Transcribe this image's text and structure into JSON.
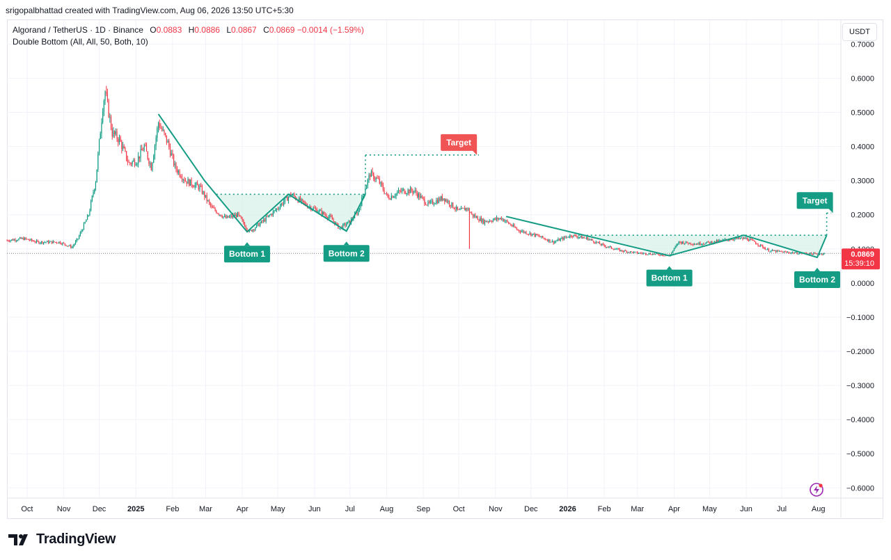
{
  "credit": "srigopalbhattad created with TradingView.com, Aug 06, 2026 13:50 UTC+5:30",
  "legend": {
    "symbol": "Algorand / TetherUS · 1D · Binance",
    "open_label": "O",
    "open": "0.0883",
    "high_label": "H",
    "high": "0.0886",
    "low_label": "L",
    "low": "0.0867",
    "close_label": "C",
    "close": "0.0869",
    "change": "−0.0014 (−1.59%)",
    "indicator": "Double Bottom (All, All, 50, Both, 10)"
  },
  "currency_button": "USDT",
  "price_badge": {
    "price": "0.0869",
    "countdown": "15:39:10"
  },
  "brand": "TradingView",
  "icons": {
    "logo": "tradingview-logo-icon",
    "flash": "lightning-icon"
  },
  "colors": {
    "up": "#089981",
    "down": "#f23645",
    "pattern": "#149c84",
    "fill": "#d9f2ea",
    "target_red": "#f05454"
  },
  "chart_data": {
    "type": "candlestick",
    "y_unit": "USDT",
    "ylim": [
      -0.63,
      0.77
    ],
    "y_ticks": [
      "0.7000",
      "0.6000",
      "0.5000",
      "0.4000",
      "0.3000",
      "0.2000",
      "0.1000",
      "0.0000",
      "−0.1000",
      "−0.2000",
      "−0.3000",
      "−0.4000",
      "−0.5000",
      "−0.6000"
    ],
    "x_ticks": [
      {
        "label": "Oct",
        "date": "2024-10-01"
      },
      {
        "label": "Nov",
        "date": "2024-11-01"
      },
      {
        "label": "Dec",
        "date": "2024-12-01"
      },
      {
        "label": "2025",
        "date": "2025-01-01"
      },
      {
        "label": "Feb",
        "date": "2025-02-01"
      },
      {
        "label": "Mar",
        "date": "2025-03-01"
      },
      {
        "label": "Apr",
        "date": "2025-04-01"
      },
      {
        "label": "May",
        "date": "2025-05-01"
      },
      {
        "label": "Jun",
        "date": "2025-06-01"
      },
      {
        "label": "Jul",
        "date": "2025-07-01"
      },
      {
        "label": "Aug",
        "date": "2025-08-01"
      },
      {
        "label": "Sep",
        "date": "2025-09-01"
      },
      {
        "label": "Oct",
        "date": "2025-10-01"
      },
      {
        "label": "Nov",
        "date": "2025-11-01"
      },
      {
        "label": "Dec",
        "date": "2025-12-01"
      },
      {
        "label": "2026",
        "date": "2026-01-01"
      },
      {
        "label": "Feb",
        "date": "2026-02-01"
      },
      {
        "label": "Mar",
        "date": "2026-03-01"
      },
      {
        "label": "Apr",
        "date": "2026-04-01"
      },
      {
        "label": "May",
        "date": "2026-05-01"
      },
      {
        "label": "Jun",
        "date": "2026-06-01"
      },
      {
        "label": "Jul",
        "date": "2026-07-01"
      },
      {
        "label": "Aug",
        "date": "2026-08-01"
      }
    ],
    "x_range": [
      "2024-09-14",
      "2026-08-20"
    ],
    "price_path": [
      [
        "2024-09-14",
        0.125
      ],
      [
        "2024-09-28",
        0.13
      ],
      [
        "2024-10-10",
        0.12
      ],
      [
        "2024-10-28",
        0.12
      ],
      [
        "2024-11-08",
        0.105
      ],
      [
        "2024-11-13",
        0.13
      ],
      [
        "2024-11-22",
        0.2
      ],
      [
        "2024-11-28",
        0.3
      ],
      [
        "2024-12-04",
        0.52
      ],
      [
        "2024-12-06",
        0.56
      ],
      [
        "2024-12-12",
        0.44
      ],
      [
        "2024-12-18",
        0.42
      ],
      [
        "2024-12-26",
        0.35
      ],
      [
        "2025-01-02",
        0.36
      ],
      [
        "2025-01-08",
        0.4
      ],
      [
        "2025-01-14",
        0.34
      ],
      [
        "2025-01-20",
        0.47
      ],
      [
        "2025-01-28",
        0.41
      ],
      [
        "2025-02-03",
        0.34
      ],
      [
        "2025-02-12",
        0.3
      ],
      [
        "2025-02-24",
        0.28
      ],
      [
        "2025-03-06",
        0.22
      ],
      [
        "2025-03-18",
        0.19
      ],
      [
        "2025-03-28",
        0.2
      ],
      [
        "2025-04-07",
        0.15
      ],
      [
        "2025-04-18",
        0.18
      ],
      [
        "2025-04-28",
        0.21
      ],
      [
        "2025-05-12",
        0.26
      ],
      [
        "2025-05-24",
        0.23
      ],
      [
        "2025-06-05",
        0.21
      ],
      [
        "2025-06-15",
        0.19
      ],
      [
        "2025-06-22",
        0.16
      ],
      [
        "2025-07-01",
        0.18
      ],
      [
        "2025-07-08",
        0.21
      ],
      [
        "2025-07-14",
        0.28
      ],
      [
        "2025-07-18",
        0.32
      ],
      [
        "2025-07-25",
        0.3
      ],
      [
        "2025-08-02",
        0.25
      ],
      [
        "2025-08-14",
        0.27
      ],
      [
        "2025-08-24",
        0.27
      ],
      [
        "2025-09-05",
        0.23
      ],
      [
        "2025-09-18",
        0.25
      ],
      [
        "2025-10-01",
        0.21
      ],
      [
        "2025-10-08",
        0.22
      ],
      [
        "2025-10-12",
        0.2
      ],
      [
        "2025-10-22",
        0.18
      ],
      [
        "2025-11-06",
        0.19
      ],
      [
        "2025-11-20",
        0.155
      ],
      [
        "2025-12-05",
        0.14
      ],
      [
        "2025-12-20",
        0.12
      ],
      [
        "2026-01-04",
        0.14
      ],
      [
        "2026-01-18",
        0.13
      ],
      [
        "2026-01-31",
        0.11
      ],
      [
        "2026-02-15",
        0.095
      ],
      [
        "2026-03-01",
        0.088
      ],
      [
        "2026-03-15",
        0.085
      ],
      [
        "2026-03-28",
        0.08
      ],
      [
        "2026-04-05",
        0.12
      ],
      [
        "2026-04-20",
        0.115
      ],
      [
        "2026-05-05",
        0.12
      ],
      [
        "2026-05-20",
        0.13
      ],
      [
        "2026-06-01",
        0.13
      ],
      [
        "2026-06-08",
        0.12
      ],
      [
        "2026-06-20",
        0.095
      ],
      [
        "2026-07-05",
        0.09
      ],
      [
        "2026-07-20",
        0.087
      ],
      [
        "2026-07-31",
        0.085
      ],
      [
        "2026-08-06",
        0.0869
      ]
    ],
    "spike_low": {
      "date": "2025-10-10",
      "value": 0.1
    },
    "current_price": 0.0869,
    "patterns": [
      {
        "name": "Double Bottom",
        "path": [
          [
            "2025-01-20",
            0.495
          ],
          [
            "2025-02-28",
            0.3
          ],
          [
            "2025-04-05",
            0.15
          ],
          [
            "2025-05-10",
            0.26
          ],
          [
            "2025-06-28",
            0.152
          ],
          [
            "2025-07-14",
            0.26
          ]
        ],
        "neckline": 0.26,
        "neckline_from": "2025-03-10",
        "neckline_to": "2025-07-14",
        "target": 0.375,
        "target_to": "2025-10-18",
        "labels": [
          {
            "text": "Bottom 1",
            "date": "2025-04-05"
          },
          {
            "text": "Bottom 2",
            "date": "2025-06-28"
          },
          {
            "text": "Target",
            "date": "2025-10-01"
          }
        ]
      },
      {
        "name": "Double Bottom",
        "path": [
          [
            "2025-11-10",
            0.195
          ],
          [
            "2026-03-28",
            0.08
          ],
          [
            "2026-05-30",
            0.14
          ],
          [
            "2026-07-31",
            0.075
          ],
          [
            "2026-08-08",
            0.14
          ]
        ],
        "neckline": 0.14,
        "neckline_from": "2026-01-10",
        "neckline_to": "2026-08-08",
        "target": 0.205,
        "target_to": "2026-08-12",
        "labels": [
          {
            "text": "Bottom 1",
            "date": "2026-03-28"
          },
          {
            "text": "Bottom 2",
            "date": "2026-07-31"
          },
          {
            "text": "Target",
            "date": "2026-07-29"
          }
        ]
      }
    ]
  }
}
